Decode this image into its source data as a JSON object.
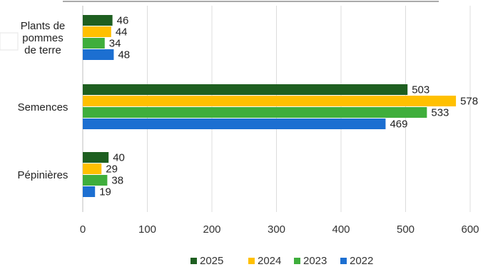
{
  "chart_data": {
    "type": "bar",
    "orientation": "horizontal",
    "categories": [
      [
        "Plants de",
        "pommes",
        "de terre"
      ],
      [
        "Semences"
      ],
      [
        "Pépinières"
      ]
    ],
    "series": [
      {
        "name": "2025",
        "color": "#1e5f20",
        "values": [
          46,
          503,
          40
        ]
      },
      {
        "name": "2024",
        "color": "#ffc000",
        "values": [
          44,
          578,
          29
        ]
      },
      {
        "name": "2023",
        "color": "#3fae3c",
        "values": [
          34,
          533,
          38
        ]
      },
      {
        "name": "2022",
        "color": "#1c6fd1",
        "values": [
          48,
          469,
          19
        ]
      }
    ],
    "xlim": [
      0,
      600
    ],
    "xticks": [
      0,
      100,
      200,
      300,
      400,
      500,
      600
    ],
    "grid": true,
    "legend_position": "bottom"
  }
}
